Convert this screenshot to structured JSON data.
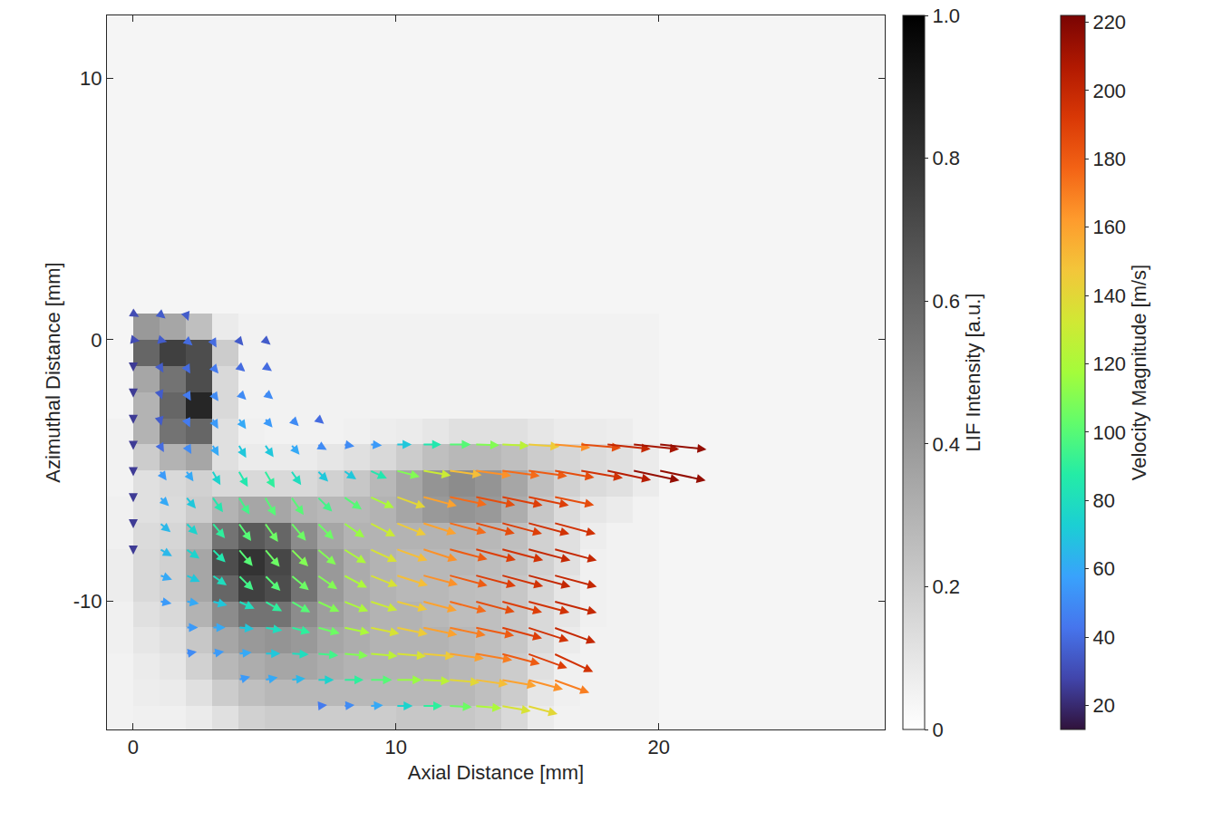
{
  "chart_data": {
    "type": "quiver",
    "xlabel": "Axial Distance [mm]",
    "ylabel": "Azimuthal Distance [mm]",
    "xlim": [
      -1,
      28.6
    ],
    "ylim": [
      -14.9,
      12.4
    ],
    "xticks": [
      0,
      10,
      20
    ],
    "yticks": [
      -10,
      0,
      10
    ],
    "background": {
      "colorbar_title": "LIF Intensity [a.u.]",
      "clim": [
        0,
        1
      ],
      "cticks": [
        0,
        0.2,
        0.4,
        0.6,
        0.8,
        {
          "value": 1,
          "label": "1.0"
        }
      ],
      "x_edges": [
        -1,
        0,
        1,
        2,
        3,
        4,
        5,
        6,
        7,
        8,
        9,
        10,
        11,
        12,
        13,
        14,
        15,
        16,
        17,
        18,
        19,
        20,
        28.6
      ],
      "y_edges": [
        -14.9,
        -14,
        -13,
        -12,
        -11,
        -10,
        -9,
        -8,
        -7,
        -6,
        -5,
        -4,
        -3,
        -2,
        -1,
        0,
        1,
        12.4
      ],
      "z": [
        [
          0.05,
          0.06,
          0.06,
          0.08,
          0.12,
          0.18,
          0.2,
          0.2,
          0.2,
          0.2,
          0.2,
          0.22,
          0.22,
          0.22,
          0.2,
          0.15,
          0.08,
          0.05,
          0.05,
          0.05,
          0.05,
          0.04
        ],
        [
          0.05,
          0.07,
          0.08,
          0.12,
          0.2,
          0.25,
          0.28,
          0.28,
          0.28,
          0.28,
          0.28,
          0.28,
          0.28,
          0.28,
          0.25,
          0.2,
          0.1,
          0.06,
          0.05,
          0.05,
          0.05,
          0.04
        ],
        [
          0.05,
          0.08,
          0.1,
          0.18,
          0.28,
          0.32,
          0.35,
          0.35,
          0.32,
          0.3,
          0.3,
          0.3,
          0.3,
          0.28,
          0.25,
          0.2,
          0.12,
          0.06,
          0.05,
          0.05,
          0.05,
          0.04
        ],
        [
          0.06,
          0.1,
          0.12,
          0.22,
          0.35,
          0.4,
          0.42,
          0.4,
          0.35,
          0.32,
          0.3,
          0.3,
          0.3,
          0.28,
          0.25,
          0.22,
          0.15,
          0.08,
          0.05,
          0.05,
          0.05,
          0.04
        ],
        [
          0.06,
          0.12,
          0.15,
          0.3,
          0.45,
          0.55,
          0.55,
          0.45,
          0.38,
          0.33,
          0.3,
          0.3,
          0.28,
          0.26,
          0.25,
          0.22,
          0.15,
          0.1,
          0.06,
          0.05,
          0.05,
          0.04
        ],
        [
          0.07,
          0.15,
          0.18,
          0.35,
          0.6,
          0.75,
          0.7,
          0.55,
          0.4,
          0.33,
          0.3,
          0.28,
          0.28,
          0.26,
          0.25,
          0.22,
          0.16,
          0.1,
          0.06,
          0.05,
          0.05,
          0.04
        ],
        [
          0.07,
          0.15,
          0.18,
          0.35,
          0.7,
          0.8,
          0.72,
          0.55,
          0.4,
          0.33,
          0.3,
          0.28,
          0.28,
          0.28,
          0.26,
          0.24,
          0.18,
          0.12,
          0.06,
          0.05,
          0.05,
          0.04
        ],
        [
          0.06,
          0.14,
          0.16,
          0.3,
          0.55,
          0.65,
          0.6,
          0.45,
          0.35,
          0.3,
          0.3,
          0.3,
          0.3,
          0.3,
          0.28,
          0.25,
          0.18,
          0.12,
          0.07,
          0.05,
          0.05,
          0.04
        ],
        [
          0.06,
          0.12,
          0.14,
          0.2,
          0.3,
          0.35,
          0.35,
          0.3,
          0.28,
          0.28,
          0.3,
          0.35,
          0.4,
          0.42,
          0.4,
          0.32,
          0.22,
          0.14,
          0.1,
          0.08,
          0.05,
          0.04
        ],
        [
          0.05,
          0.12,
          0.15,
          0.18,
          0.15,
          0.15,
          0.15,
          0.15,
          0.18,
          0.22,
          0.28,
          0.35,
          0.42,
          0.45,
          0.42,
          0.35,
          0.25,
          0.18,
          0.14,
          0.12,
          0.08,
          0.04
        ],
        [
          0.05,
          0.2,
          0.3,
          0.35,
          0.12,
          0.08,
          0.08,
          0.08,
          0.1,
          0.12,
          0.15,
          0.2,
          0.25,
          0.28,
          0.28,
          0.25,
          0.2,
          0.16,
          0.14,
          0.12,
          0.08,
          0.04
        ],
        [
          0.05,
          0.3,
          0.55,
          0.6,
          0.12,
          0.06,
          0.05,
          0.05,
          0.05,
          0.06,
          0.07,
          0.08,
          0.1,
          0.12,
          0.12,
          0.12,
          0.1,
          0.08,
          0.08,
          0.07,
          0.05,
          0.04
        ],
        [
          0.04,
          0.3,
          0.6,
          0.85,
          0.15,
          0.05,
          0.05,
          0.05,
          0.05,
          0.05,
          0.05,
          0.05,
          0.05,
          0.05,
          0.05,
          0.05,
          0.05,
          0.05,
          0.05,
          0.05,
          0.05,
          0.04
        ],
        [
          0.04,
          0.35,
          0.55,
          0.7,
          0.15,
          0.05,
          0.05,
          0.05,
          0.05,
          0.05,
          0.05,
          0.05,
          0.05,
          0.05,
          0.05,
          0.05,
          0.05,
          0.05,
          0.05,
          0.05,
          0.05,
          0.04
        ],
        [
          0.04,
          0.6,
          0.75,
          0.7,
          0.2,
          0.05,
          0.05,
          0.05,
          0.05,
          0.05,
          0.05,
          0.05,
          0.05,
          0.05,
          0.05,
          0.05,
          0.05,
          0.05,
          0.05,
          0.05,
          0.05,
          0.04
        ],
        [
          0.04,
          0.4,
          0.35,
          0.25,
          0.08,
          0.05,
          0.05,
          0.05,
          0.05,
          0.05,
          0.05,
          0.05,
          0.05,
          0.05,
          0.05,
          0.05,
          0.05,
          0.05,
          0.05,
          0.05,
          0.05,
          0.04
        ],
        [
          0.04,
          0.04,
          0.04,
          0.04,
          0.04,
          0.04,
          0.04,
          0.04,
          0.04,
          0.04,
          0.04,
          0.04,
          0.04,
          0.04,
          0.04,
          0.04,
          0.04,
          0.04,
          0.04,
          0.04,
          0.04,
          0.04
        ]
      ]
    },
    "vectors": {
      "colorbar_title": "Velocity Magnitude [m/s]",
      "clim": [
        13,
        222
      ],
      "cticks": [
        20,
        40,
        60,
        80,
        100,
        120,
        140,
        160,
        180,
        200,
        220
      ],
      "x": [
        0,
        1,
        2,
        3,
        4,
        5,
        6,
        7,
        8,
        9,
        10,
        11,
        12,
        13,
        14,
        15,
        16,
        17,
        18,
        19,
        20
      ],
      "y": [
        1,
        0,
        -1,
        -2,
        -3,
        -4,
        -5,
        -6,
        -7,
        -8,
        -9,
        -10,
        -11,
        -12,
        -13,
        -14
      ],
      "speed": [
        [
          30,
          35,
          35,
          null,
          null,
          null,
          null,
          null,
          null,
          null,
          null,
          null,
          null,
          null,
          null,
          null,
          null,
          null,
          null,
          null,
          null
        ],
        [
          30,
          35,
          40,
          40,
          35,
          35,
          null,
          null,
          null,
          null,
          null,
          null,
          null,
          null,
          null,
          null,
          null,
          null,
          null,
          null,
          null
        ],
        [
          25,
          35,
          40,
          45,
          40,
          40,
          null,
          null,
          null,
          null,
          null,
          null,
          null,
          null,
          null,
          null,
          null,
          null,
          null,
          null,
          null
        ],
        [
          25,
          35,
          45,
          50,
          50,
          50,
          null,
          null,
          null,
          null,
          null,
          null,
          null,
          null,
          null,
          null,
          null,
          null,
          null,
          null,
          null
        ],
        [
          25,
          35,
          45,
          55,
          60,
          55,
          50,
          40,
          null,
          null,
          null,
          null,
          null,
          null,
          null,
          null,
          null,
          null,
          null,
          null,
          null
        ],
        [
          25,
          40,
          50,
          60,
          70,
          70,
          60,
          50,
          50,
          55,
          70,
          85,
          100,
          110,
          125,
          145,
          165,
          185,
          200,
          210,
          215
        ],
        [
          25,
          55,
          60,
          75,
          85,
          90,
          80,
          70,
          70,
          85,
          110,
          130,
          150,
          165,
          175,
          180,
          185,
          195,
          205,
          215,
          215
        ],
        [
          25,
          60,
          70,
          85,
          95,
          100,
          100,
          95,
          100,
          120,
          140,
          160,
          175,
          185,
          190,
          190,
          185,
          null,
          null,
          null,
          null
        ],
        [
          25,
          65,
          75,
          90,
          100,
          105,
          105,
          105,
          115,
          130,
          145,
          160,
          175,
          185,
          190,
          195,
          195,
          null,
          null,
          null,
          null
        ],
        [
          25,
          65,
          75,
          85,
          100,
          105,
          110,
          110,
          120,
          135,
          150,
          165,
          180,
          190,
          195,
          200,
          200,
          null,
          null,
          null,
          null
        ],
        [
          null,
          60,
          70,
          80,
          95,
          100,
          105,
          110,
          120,
          135,
          150,
          165,
          180,
          190,
          195,
          200,
          200,
          null,
          null,
          null,
          null
        ],
        [
          null,
          55,
          60,
          70,
          80,
          90,
          100,
          110,
          120,
          130,
          145,
          160,
          175,
          185,
          190,
          195,
          200,
          null,
          null,
          null,
          null
        ],
        [
          null,
          null,
          55,
          60,
          70,
          80,
          90,
          105,
          120,
          135,
          145,
          160,
          170,
          180,
          190,
          195,
          200,
          null,
          null,
          null,
          null
        ],
        [
          null,
          null,
          50,
          55,
          60,
          70,
          80,
          95,
          110,
          125,
          135,
          145,
          160,
          170,
          180,
          190,
          195,
          null,
          null,
          null,
          null
        ],
        [
          null,
          null,
          null,
          null,
          55,
          60,
          65,
          75,
          90,
          100,
          115,
          125,
          140,
          150,
          160,
          165,
          170,
          null,
          null,
          null,
          null
        ],
        [
          null,
          null,
          null,
          null,
          null,
          null,
          null,
          45,
          50,
          60,
          75,
          90,
          105,
          120,
          135,
          140,
          null,
          null,
          null,
          null,
          null
        ]
      ],
      "angle": [
        [
          -30,
          -40,
          -70,
          null,
          null,
          null,
          null,
          null,
          null,
          null,
          null,
          null,
          null,
          null,
          null,
          null,
          null,
          null,
          null,
          null,
          null
        ],
        [
          -10,
          -15,
          -40,
          -60,
          -50,
          -40,
          null,
          null,
          null,
          null,
          null,
          null,
          null,
          null,
          null,
          null,
          null,
          null,
          null,
          null,
          null
        ],
        [
          -90,
          -60,
          -60,
          -50,
          -40,
          -35,
          null,
          null,
          null,
          null,
          null,
          null,
          null,
          null,
          null,
          null,
          null,
          null,
          null,
          null,
          null
        ],
        [
          -90,
          -70,
          -60,
          -55,
          -45,
          -40,
          null,
          null,
          null,
          null,
          null,
          null,
          null,
          null,
          null,
          null,
          null,
          null,
          null,
          null,
          null
        ],
        [
          -90,
          -75,
          -65,
          -60,
          -55,
          -50,
          -45,
          -40,
          null,
          null,
          null,
          null,
          null,
          null,
          null,
          null,
          null,
          null,
          null,
          null,
          null
        ],
        [
          -90,
          -60,
          -60,
          -60,
          -60,
          -55,
          -50,
          -30,
          -10,
          -5,
          0,
          0,
          0,
          -2,
          -3,
          -4,
          -5,
          -5,
          -6,
          -6,
          -6
        ],
        [
          -90,
          -55,
          -55,
          -60,
          -60,
          -60,
          -55,
          -45,
          -35,
          -25,
          -15,
          -10,
          -8,
          -8,
          -8,
          -8,
          -10,
          -10,
          -12,
          -12,
          -12
        ],
        [
          -90,
          -45,
          -50,
          -55,
          -58,
          -60,
          -55,
          -45,
          -35,
          -25,
          -20,
          -15,
          -12,
          -12,
          -12,
          -12,
          -12,
          null,
          null,
          null,
          null
        ],
        [
          -90,
          -40,
          -45,
          -50,
          -55,
          -55,
          -50,
          -45,
          -35,
          -28,
          -22,
          -18,
          -15,
          -15,
          -15,
          -15,
          -15,
          null,
          null,
          null,
          null
        ],
        [
          -90,
          -30,
          -35,
          -45,
          -50,
          -50,
          -45,
          -40,
          -32,
          -25,
          -20,
          -18,
          -15,
          -15,
          -15,
          -15,
          -15,
          null,
          null,
          null,
          null
        ],
        [
          null,
          -20,
          -25,
          -35,
          -45,
          -45,
          -40,
          -35,
          -28,
          -22,
          -18,
          -15,
          -15,
          -15,
          -15,
          -15,
          -15,
          null,
          null,
          null,
          null
        ],
        [
          null,
          -10,
          -10,
          -15,
          -25,
          -30,
          -30,
          -25,
          -22,
          -18,
          -15,
          -15,
          -15,
          -15,
          -15,
          -15,
          -15,
          null,
          null,
          null,
          null
        ],
        [
          null,
          null,
          0,
          0,
          -5,
          -10,
          -15,
          -15,
          -12,
          -12,
          -12,
          -12,
          -12,
          -12,
          -15,
          -18,
          -20,
          null,
          null,
          null,
          null
        ],
        [
          null,
          null,
          10,
          10,
          5,
          0,
          -3,
          -5,
          -5,
          -5,
          -5,
          -5,
          -8,
          -10,
          -15,
          -20,
          -25,
          null,
          null,
          null,
          null
        ],
        [
          null,
          null,
          null,
          null,
          15,
          10,
          5,
          0,
          0,
          0,
          0,
          -3,
          -5,
          -8,
          -10,
          -15,
          -20,
          null,
          null,
          null,
          null
        ],
        [
          null,
          null,
          null,
          null,
          null,
          null,
          null,
          5,
          5,
          3,
          0,
          0,
          -3,
          -5,
          -10,
          -15,
          null,
          null,
          null,
          null,
          null
        ]
      ]
    }
  }
}
